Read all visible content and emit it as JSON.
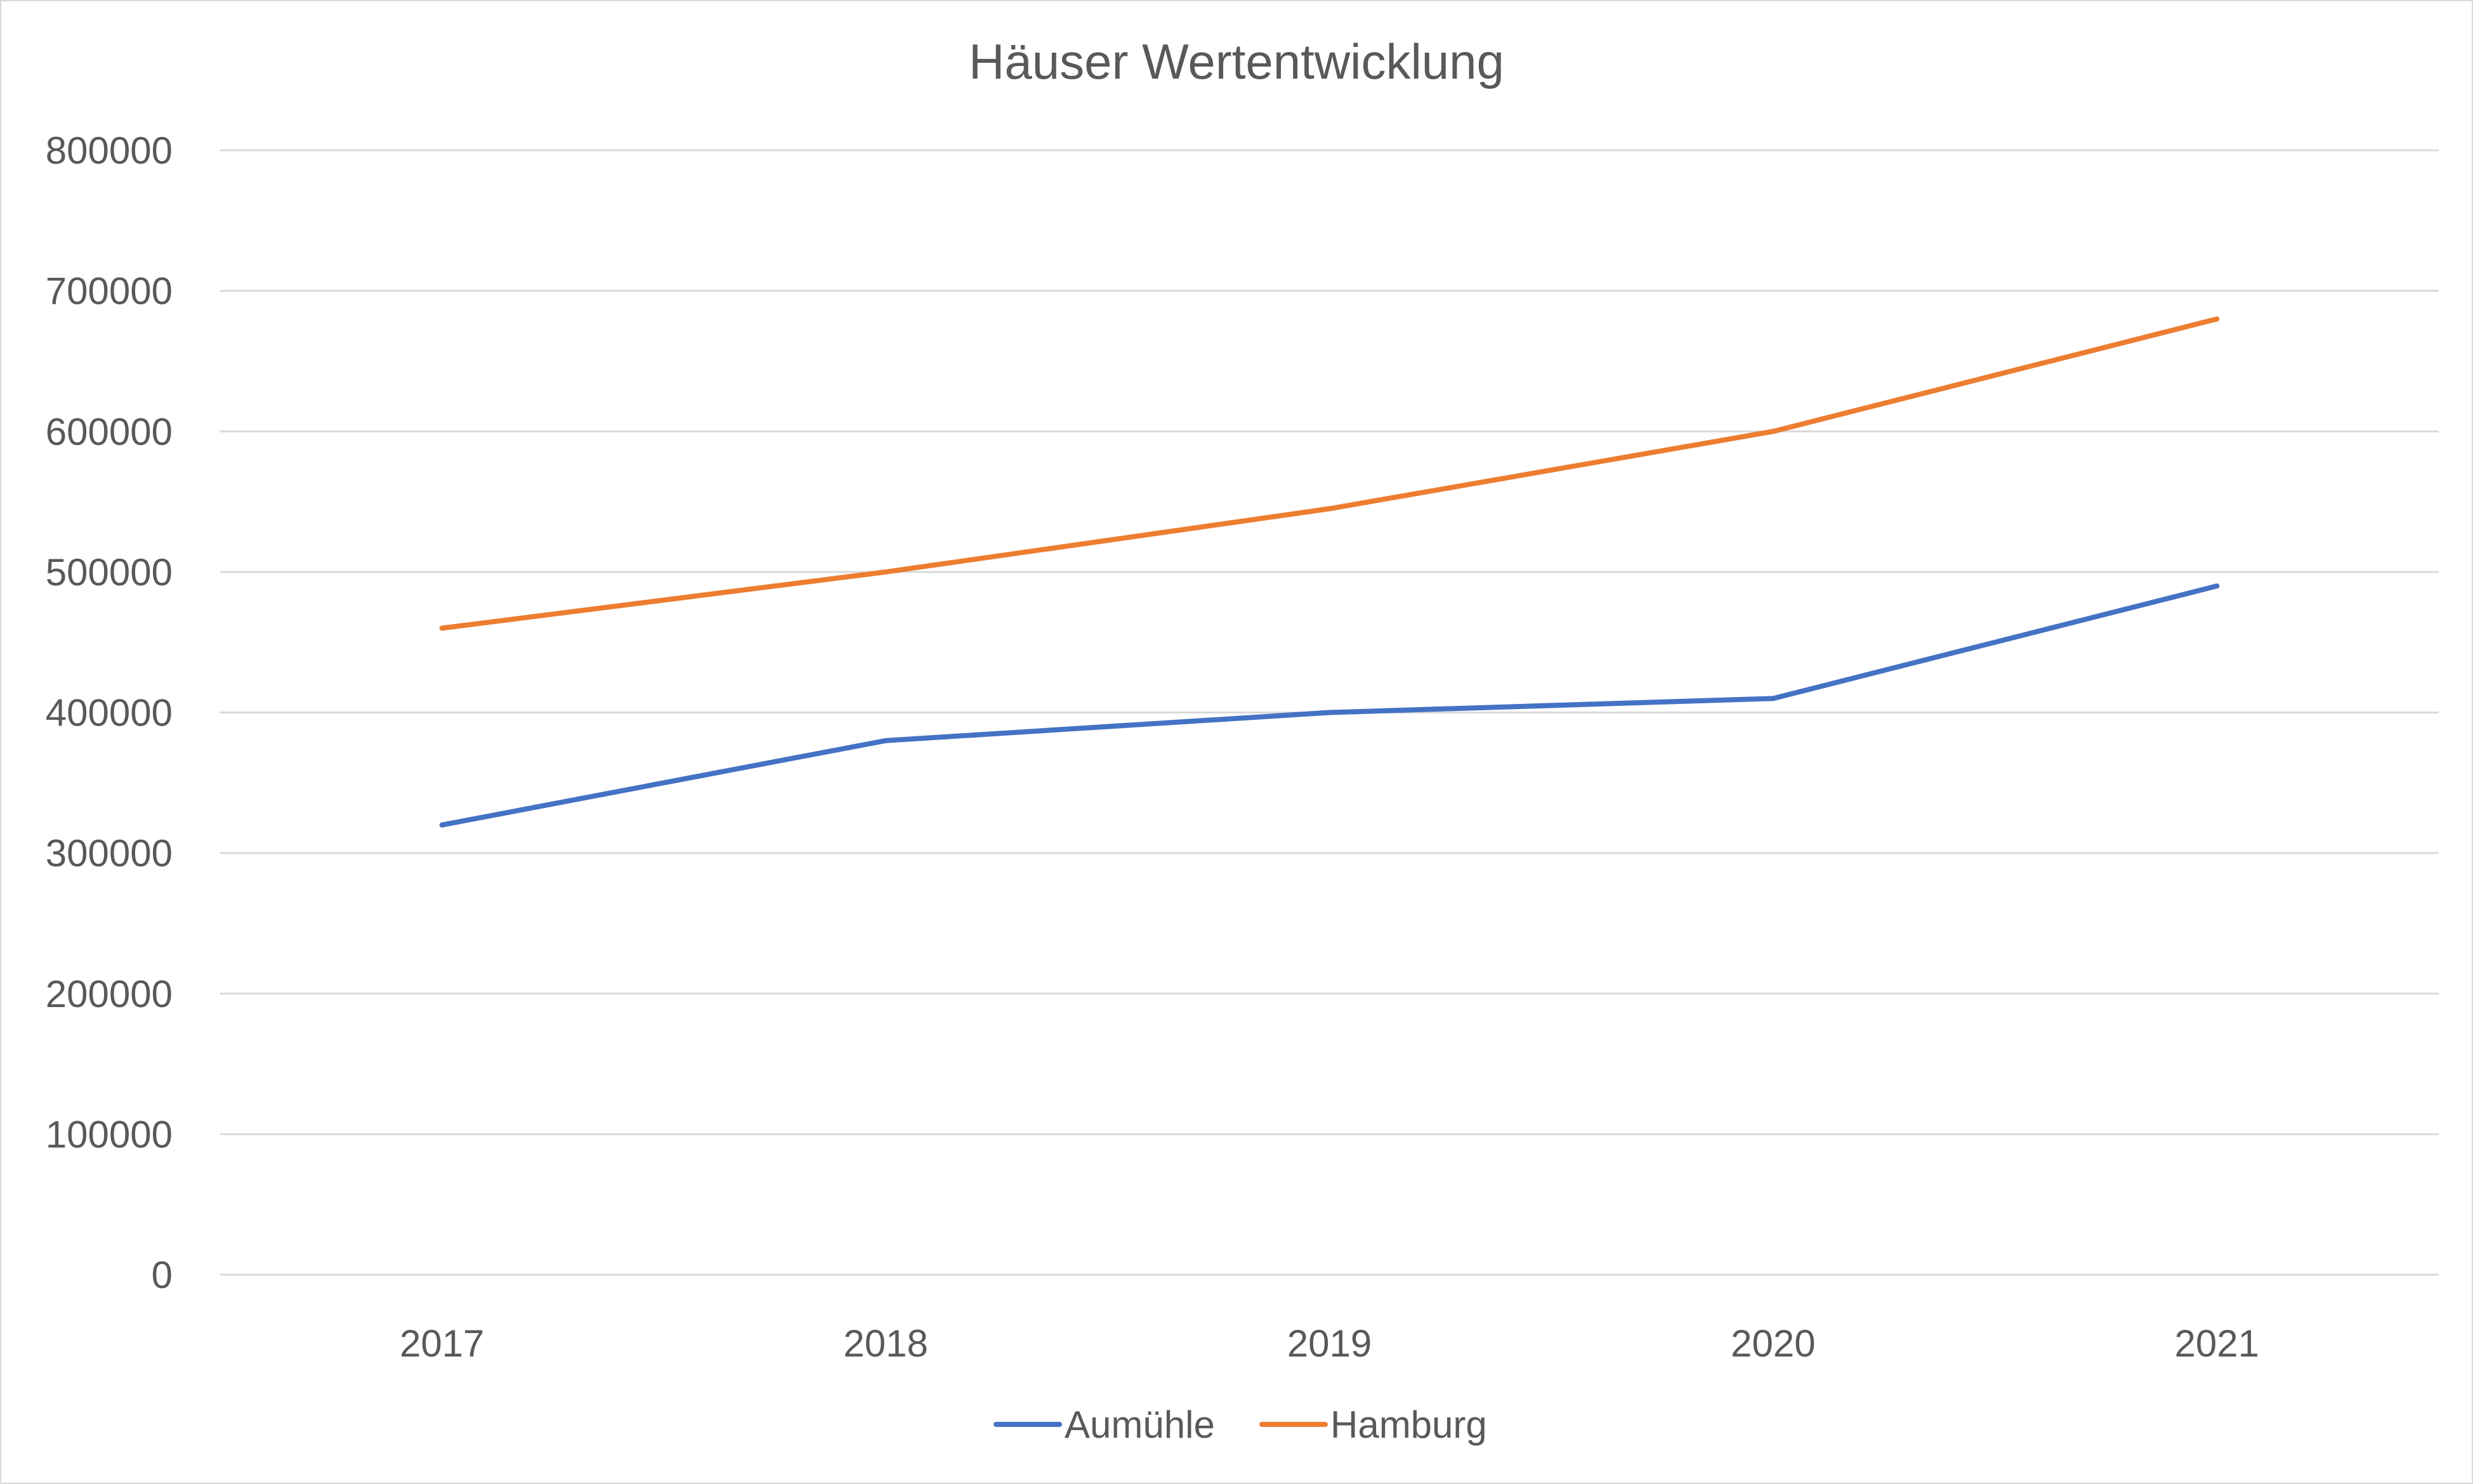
{
  "chart_data": {
    "type": "line",
    "title": "Häuser Wertentwicklung",
    "xlabel": "",
    "ylabel": "",
    "categories": [
      "2017",
      "2018",
      "2019",
      "2020",
      "2021"
    ],
    "ylim": [
      0,
      800000
    ],
    "yticks": [
      "0",
      "100000",
      "200000",
      "300000",
      "400000",
      "500000",
      "600000",
      "700000",
      "800000"
    ],
    "grid": true,
    "legend_position": "bottom",
    "series": [
      {
        "name": "Aumühle",
        "color": "#4472c4",
        "values": [
          320000,
          380000,
          400000,
          410000,
          490000
        ]
      },
      {
        "name": "Hamburg",
        "color": "#ed7d31",
        "values": [
          460000,
          500000,
          545000,
          600000,
          680000
        ]
      }
    ]
  }
}
